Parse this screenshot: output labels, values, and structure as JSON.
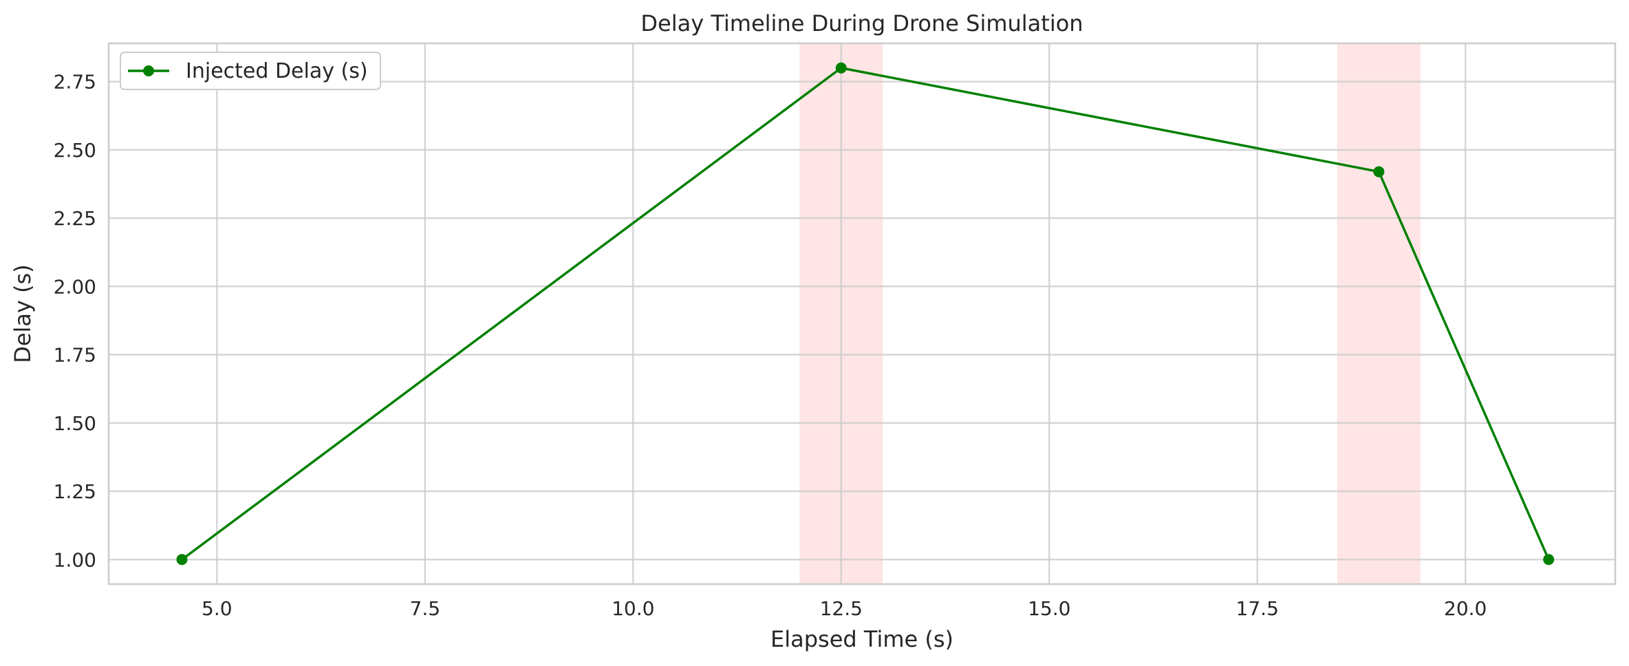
{
  "chart_data": {
    "type": "line",
    "title": "Delay Timeline During Drone Simulation",
    "xlabel": "Elapsed Time (s)",
    "ylabel": "Delay (s)",
    "xlim": [
      3.7,
      21.8
    ],
    "ylim": [
      0.91,
      2.89
    ],
    "x_ticks": [
      5.0,
      7.5,
      10.0,
      12.5,
      15.0,
      17.5,
      20.0
    ],
    "x_tick_labels": [
      "5.0",
      "7.5",
      "10.0",
      "12.5",
      "15.0",
      "17.5",
      "20.0"
    ],
    "y_ticks": [
      1.0,
      1.25,
      1.5,
      1.75,
      2.0,
      2.25,
      2.5,
      2.75
    ],
    "y_tick_labels": [
      "1.00",
      "1.25",
      "1.50",
      "1.75",
      "2.00",
      "2.25",
      "2.50",
      "2.75"
    ],
    "grid": true,
    "legend_position": "upper-left",
    "series": [
      {
        "name": "Injected Delay (s)",
        "color": "#008000",
        "marker": "circle",
        "x": [
          4.58,
          12.5,
          18.96,
          21.0
        ],
        "y": [
          1.0,
          2.8,
          2.42,
          1.0
        ]
      }
    ],
    "shaded_regions": [
      {
        "x_start": 12.0,
        "x_end": 13.0,
        "color": "#ff0000",
        "opacity": 0.1
      },
      {
        "x_start": 18.46,
        "x_end": 19.46,
        "color": "#ff0000",
        "opacity": 0.1
      }
    ]
  }
}
